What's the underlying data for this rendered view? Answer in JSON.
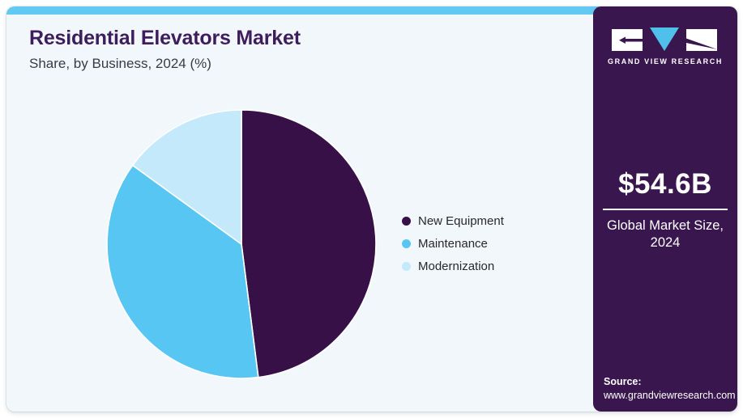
{
  "header": {
    "title": "Residential Elevators Market",
    "subtitle": "Share, by Business, 2024 (%)"
  },
  "chart_data": {
    "type": "pie",
    "title": "Residential Elevators Market Share, by Business, 2024 (%)",
    "categories": [
      "New Equipment",
      "Maintenance",
      "Modernization"
    ],
    "values": [
      48,
      37,
      15
    ],
    "colors": [
      "#371047",
      "#58c6f2",
      "#c3e9fb"
    ],
    "start_angle_deg": 0,
    "direction": "clockwise",
    "legend_position": "right",
    "slice_border_color": "#ffffff"
  },
  "sidebar": {
    "logo_text": "GRAND VIEW RESEARCH",
    "market_size_value": "$54.6B",
    "market_size_label_line1": "Global Market Size,",
    "market_size_label_line2": "2024",
    "source_label": "Source:",
    "source_url": "www.grandviewresearch.com",
    "background": "#3a164e",
    "logo_triangle_color": "#4fc0ea"
  },
  "theme": {
    "card_background": "#f2f7fb",
    "topbar_color": "#62c9f2",
    "title_color": "#3d1d5c"
  }
}
